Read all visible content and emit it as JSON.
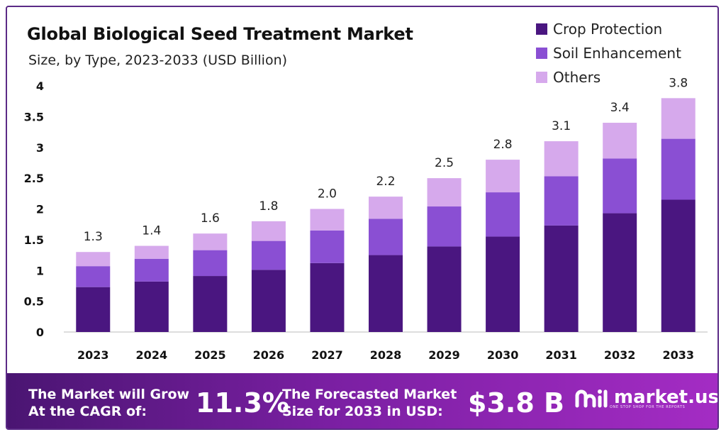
{
  "header": {
    "title": "Global Biological Seed Treatment Market",
    "subtitle": "Size, by Type, 2023-2033 (USD Billion)"
  },
  "legend": [
    {
      "label": "Crop Protection",
      "color": "#4a1680"
    },
    {
      "label": "Soil Enhancement",
      "color": "#8a4fd3"
    },
    {
      "label": "Others",
      "color": "#d6a9ec"
    }
  ],
  "chart_data": {
    "type": "bar",
    "stacked": true,
    "categories": [
      "2023",
      "2024",
      "2025",
      "2026",
      "2027",
      "2028",
      "2029",
      "2030",
      "2031",
      "2032",
      "2033"
    ],
    "series": [
      {
        "name": "Crop Protection",
        "color": "#4a1680",
        "values": [
          0.73,
          0.82,
          0.91,
          1.01,
          1.12,
          1.25,
          1.39,
          1.55,
          1.73,
          1.93,
          2.15
        ]
      },
      {
        "name": "Soil Enhancement",
        "color": "#8a4fd3",
        "values": [
          0.34,
          0.37,
          0.42,
          0.47,
          0.53,
          0.59,
          0.65,
          0.72,
          0.8,
          0.89,
          0.99
        ]
      },
      {
        "name": "Others",
        "color": "#d6a9ec",
        "values": [
          0.23,
          0.21,
          0.27,
          0.32,
          0.35,
          0.36,
          0.46,
          0.53,
          0.57,
          0.58,
          0.66
        ]
      }
    ],
    "totals": [
      "1.3",
      "1.4",
      "1.6",
      "1.8",
      "2.0",
      "2.2",
      "2.5",
      "2.8",
      "3.1",
      "3.4",
      "3.8"
    ],
    "y_ticks": [
      "0",
      "0.5",
      "1",
      "1.5",
      "2",
      "2.5",
      "3",
      "3.5",
      "4"
    ],
    "ylim": [
      0,
      4
    ],
    "grid": false,
    "legend_position": "top-right"
  },
  "footer": {
    "cagr_label_line1": "The Market will Grow",
    "cagr_label_line2": "At the CAGR of:",
    "cagr_value": "11.3%",
    "forecast_label_line1": "The Forecasted Market",
    "forecast_label_line2": "Size for 2033 in USD:",
    "forecast_value": "$3.8 B",
    "brand_name": "market.us",
    "brand_tagline": "ONE STOP SHOP FOR THE REPORTS"
  }
}
